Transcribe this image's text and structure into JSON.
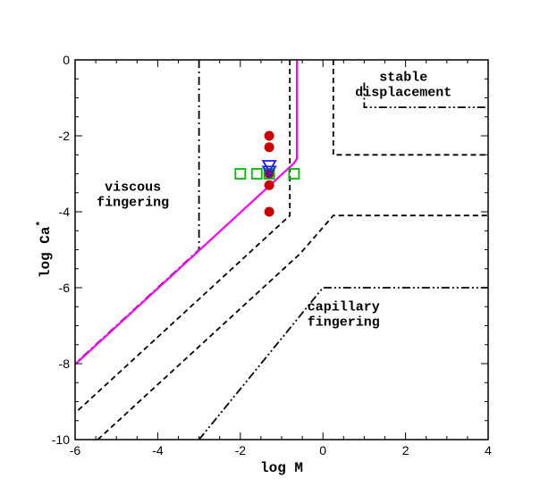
{
  "chart_data": {
    "type": "line",
    "title": "",
    "xlabel": "log M",
    "ylabel": "log Ca",
    "ylabel_superscript": "*",
    "xlim": [
      -6,
      4
    ],
    "ylim": [
      -10,
      0
    ],
    "x_ticks": [
      -6,
      -4,
      -2,
      0,
      2,
      4
    ],
    "y_ticks": [
      -10,
      -8,
      -6,
      -4,
      -2,
      0
    ],
    "x_minor_step": 0.5,
    "y_minor_step": 0.5,
    "grid": false,
    "region_labels": [
      {
        "name": "stable-displacement",
        "lines": [
          "stable",
          "displacement"
        ],
        "anchor_x": 1.95,
        "anchor_y": -0.55,
        "align": "middle"
      },
      {
        "name": "viscous-fingering",
        "lines": [
          "viscous",
          "fingering"
        ],
        "anchor_x": -4.6,
        "anchor_y": -3.45,
        "align": "middle"
      },
      {
        "name": "capillary-fingering",
        "lines": [
          "capillary",
          "fingering"
        ],
        "anchor_x": 0.5,
        "anchor_y": -6.6,
        "align": "middle"
      }
    ],
    "boundaries": [
      {
        "name": "dash-dot-dot-outer-upper",
        "style": "dashdotdot",
        "x": [
          1.0,
          1.0,
          4.0
        ],
        "y": [
          -0.6,
          -1.25,
          -1.25
        ]
      },
      {
        "name": "dash-dot-viscous-left",
        "style": "dashdot",
        "x": [
          -3.0,
          -3.0,
          -6.0
        ],
        "y": [
          0,
          -5.0,
          -8.0
        ]
      },
      {
        "name": "dashed-inner-upper",
        "style": "dashed",
        "x": [
          0.25,
          0.25,
          4.0
        ],
        "y": [
          0,
          -2.5,
          -2.5
        ]
      },
      {
        "name": "dashed-inner-left",
        "style": "dashed",
        "x": [
          -0.8,
          -0.8,
          -6.0
        ],
        "y": [
          0,
          -4.1,
          -9.3
        ]
      },
      {
        "name": "dashed-inner-lower",
        "style": "dashed",
        "x": [
          -5.45,
          -0.55,
          0.25,
          4.0
        ],
        "y": [
          -10,
          -5.1,
          -4.1,
          -4.1
        ]
      },
      {
        "name": "dash-dot-dot-capillary",
        "style": "dashdotdot",
        "x": [
          -3.0,
          0.0,
          4.0
        ],
        "y": [
          -10,
          -6.0,
          -6.0
        ]
      }
    ],
    "series": [
      {
        "name": "magenta-boundary",
        "type": "line",
        "color": "#ff00ff",
        "x": [
          -0.63,
          -0.63,
          -0.7,
          -6.0
        ],
        "y": [
          0,
          -2.6,
          -2.72,
          -8.02
        ]
      },
      {
        "name": "red-filled-circles",
        "type": "scatter",
        "marker": "filled-circle",
        "color": "#cc0000",
        "x": [
          -1.3,
          -1.3,
          -1.3,
          -1.3,
          -1.3
        ],
        "y": [
          -2.0,
          -2.3,
          -3.0,
          -3.3,
          -4.0
        ]
      },
      {
        "name": "green-open-squares",
        "type": "scatter",
        "marker": "open-square",
        "color": "#00bb00",
        "x": [
          -2.0,
          -1.6,
          -1.3,
          -0.7
        ],
        "y": [
          -3.0,
          -3.0,
          -3.0,
          -3.0
        ]
      },
      {
        "name": "blue-open-triangles",
        "type": "scatter",
        "marker": "open-triangle-down",
        "color": "#1a1aff",
        "x": [
          -1.3,
          -1.3
        ],
        "y": [
          -2.8,
          -2.95
        ]
      }
    ]
  }
}
